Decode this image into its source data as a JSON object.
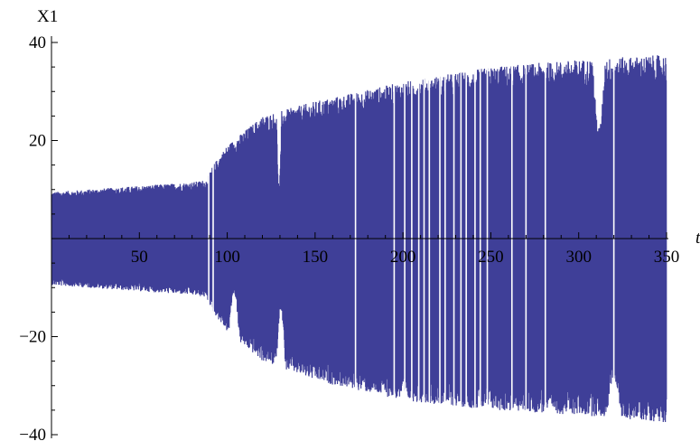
{
  "chart_data": {
    "type": "line",
    "title": "",
    "xlabel": "t",
    "ylabel": "X1",
    "xlim": [
      0,
      350
    ],
    "ylim": [
      -40,
      40
    ],
    "grid": false,
    "x_ticks": [
      "50",
      "100",
      "150",
      "200",
      "250",
      "300",
      "350"
    ],
    "y_ticks": [
      "−40",
      "−20",
      "20",
      "40"
    ],
    "series_color": "#3f3f98",
    "envelope": {
      "t": [
        0,
        20,
        40,
        60,
        80,
        88,
        92,
        100,
        120,
        150,
        175,
        200,
        250,
        300,
        350
      ],
      "upper": [
        9.5,
        10,
        10.5,
        11,
        11.5,
        12,
        15,
        19,
        25,
        28,
        30,
        32,
        35,
        36.5,
        37.5
      ],
      "lower": [
        -9.5,
        -10,
        -10.5,
        -11,
        -11.5,
        -12,
        -15,
        -19,
        -25,
        -29,
        -31,
        -33,
        -35,
        -36,
        -37.5
      ]
    }
  }
}
